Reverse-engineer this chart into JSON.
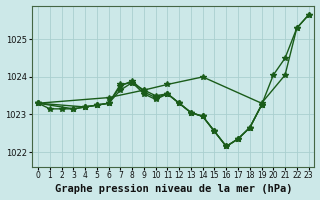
{
  "title": "Graphe pression niveau de la mer (hPa)",
  "bg_color": "#cce8e8",
  "line_color": "#1a5c1a",
  "grid_color": "#aacfcf",
  "xlim": [
    -0.5,
    23.5
  ],
  "ylim": [
    1021.6,
    1025.9
  ],
  "yticks": [
    1022,
    1023,
    1024,
    1025
  ],
  "xtick_labels": [
    "0",
    "1",
    "2",
    "3",
    "4",
    "5",
    "6",
    "7",
    "8",
    "9",
    "10",
    "11",
    "12",
    "13",
    "14",
    "15",
    "16",
    "17",
    "18",
    "19",
    "20",
    "21",
    "22",
    "23"
  ],
  "series": [
    {
      "x": [
        0,
        6,
        9,
        11,
        14,
        19,
        21,
        22,
        23
      ],
      "y": [
        1023.3,
        1023.45,
        1023.65,
        1023.8,
        1024.0,
        1023.3,
        1024.05,
        1025.3,
        1025.65
      ]
    },
    {
      "x": [
        0,
        1,
        2,
        3,
        4,
        5,
        6,
        7,
        8,
        9,
        10,
        11,
        12,
        13,
        14,
        15,
        16,
        17,
        18,
        19,
        20,
        21,
        22,
        23
      ],
      "y": [
        1023.3,
        1023.15,
        1023.15,
        1023.15,
        1023.2,
        1023.25,
        1023.3,
        1023.65,
        1023.85,
        1023.55,
        1023.4,
        1023.55,
        1023.3,
        1023.05,
        1022.95,
        1022.55,
        1022.15,
        1022.35,
        1022.65,
        1023.25,
        1024.05,
        1024.5,
        1025.3,
        1025.65
      ]
    },
    {
      "x": [
        0,
        3,
        4,
        5,
        6,
        7,
        8,
        9,
        10,
        11,
        12,
        13,
        14,
        15,
        16,
        17,
        18,
        19
      ],
      "y": [
        1023.3,
        1023.15,
        1023.2,
        1023.25,
        1023.3,
        1023.8,
        1023.85,
        1023.65,
        1023.5,
        1023.55,
        1023.3,
        1023.05,
        1022.95,
        1022.55,
        1022.15,
        1022.35,
        1022.65,
        1023.25
      ]
    },
    {
      "x": [
        0,
        4,
        5,
        6,
        7,
        8,
        9,
        10,
        11,
        12,
        13,
        14,
        15,
        16,
        17,
        18,
        19
      ],
      "y": [
        1023.3,
        1023.2,
        1023.25,
        1023.3,
        1023.75,
        1023.9,
        1023.6,
        1023.45,
        1023.55,
        1023.3,
        1023.05,
        1022.95,
        1022.55,
        1022.15,
        1022.35,
        1022.65,
        1023.25
      ]
    }
  ],
  "marker": "*",
  "marker_size": 4,
  "linewidth": 1.0,
  "title_fontsize": 7.5,
  "tick_fontsize": 6.0
}
